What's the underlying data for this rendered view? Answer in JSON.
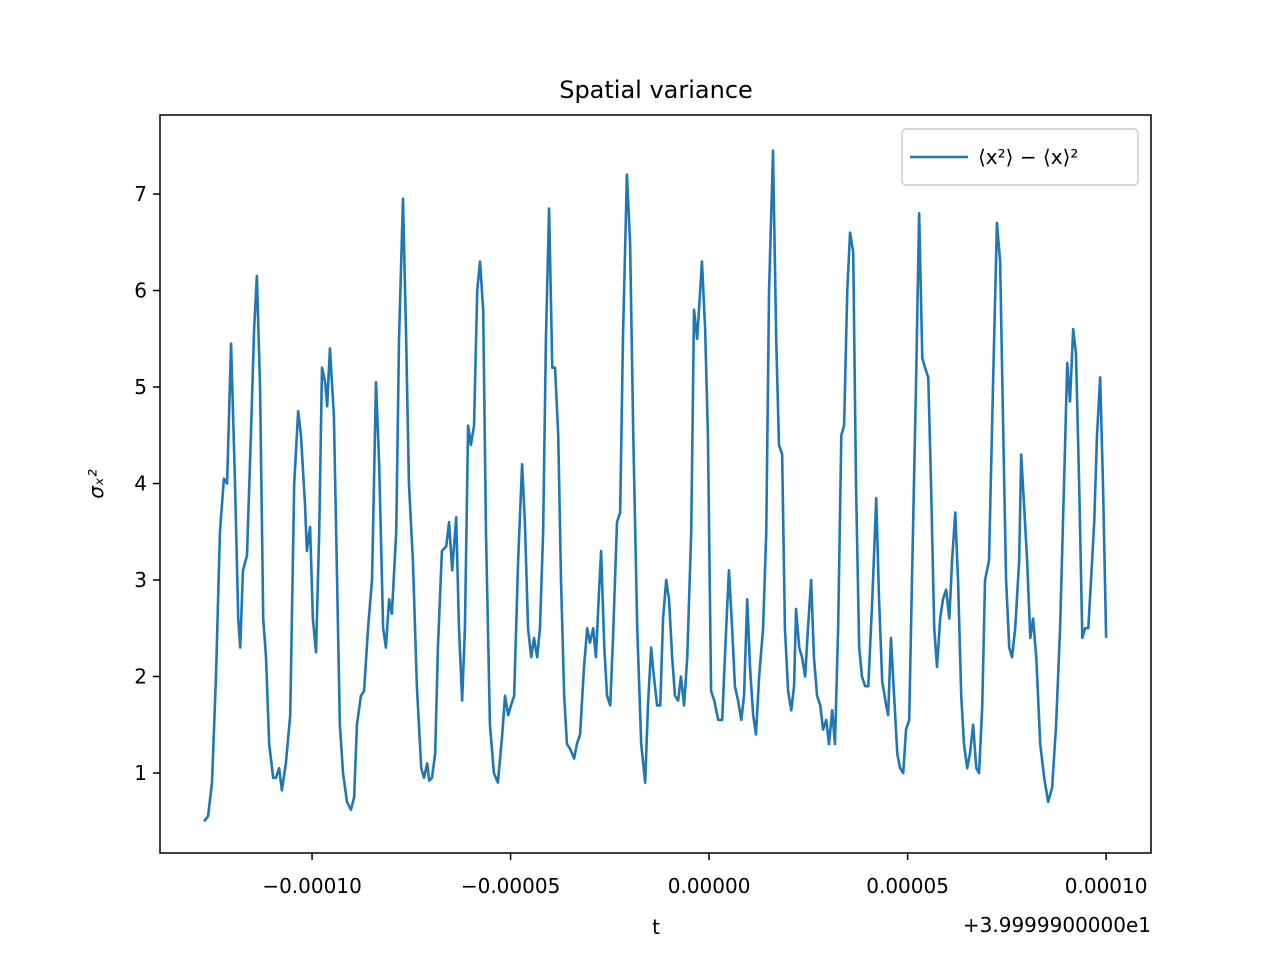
{
  "chart_data": {
    "type": "line",
    "title": "Spatial variance",
    "x_label": "t",
    "y_label": "σₓ²",
    "x_offset_text": "+3.9999900000e1",
    "x": [
      -0.0001272,
      -0.0001262,
      -0.0001252,
      -0.0001242,
      -0.0001232,
      -0.0001222,
      -0.0001214,
      -0.0001204,
      -0.0001194,
      -0.0001186,
      -0.0001181,
      -0.0001174,
      -0.0001164,
      -0.0001154,
      -0.0001146,
      -0.0001139,
      -0.0001131,
      -0.0001123,
      -0.0001116,
      -0.0001108,
      -0.0001098,
      -0.0001091,
      -0.0001083,
      -0.0001076,
      -0.0001066,
      -0.0001055,
      -0.0001045,
      -0.0001035,
      -0.0001028,
      -0.0001018,
      -0.0001013,
      -0.0001005,
      -9.98e-05,
      -9.9e-05,
      -9.82e-05,
      -9.75e-05,
      -9.67e-05,
      -9.62e-05,
      -9.55e-05,
      -9.45e-05,
      -9.37e-05,
      -9.3e-05,
      -9.22e-05,
      -9.12e-05,
      -9.02e-05,
      -8.94e-05,
      -8.87e-05,
      -8.77e-05,
      -8.69e-05,
      -8.59e-05,
      -8.49e-05,
      -8.39e-05,
      -8.31e-05,
      -8.21e-05,
      -8.14e-05,
      -8.06e-05,
      -7.99e-05,
      -7.88e-05,
      -7.81e-05,
      -7.71e-05,
      -7.63e-05,
      -7.56e-05,
      -7.46e-05,
      -7.36e-05,
      -7.25e-05,
      -7.18e-05,
      -7.1e-05,
      -7.05e-05,
      -6.98e-05,
      -6.9e-05,
      -6.83e-05,
      -6.73e-05,
      -6.62e-05,
      -6.55e-05,
      -6.47e-05,
      -6.37e-05,
      -6.3e-05,
      -6.22e-05,
      -6.15e-05,
      -6.07e-05,
      -6e-05,
      -5.92e-05,
      -5.84e-05,
      -5.77e-05,
      -5.69e-05,
      -5.62e-05,
      -5.52e-05,
      -5.42e-05,
      -5.32e-05,
      -5.21e-05,
      -5.14e-05,
      -5.06e-05,
      -4.99e-05,
      -4.91e-05,
      -4.81e-05,
      -4.71e-05,
      -4.64e-05,
      -4.56e-05,
      -4.48e-05,
      -4.41e-05,
      -4.33e-05,
      -4.26e-05,
      -4.18e-05,
      -4.11e-05,
      -4.03e-05,
      -3.95e-05,
      -3.88e-05,
      -3.8e-05,
      -3.73e-05,
      -3.65e-05,
      -3.58e-05,
      -3.5e-05,
      -3.4e-05,
      -3.33e-05,
      -3.25e-05,
      -3.15e-05,
      -3.07e-05,
      -3e-05,
      -2.92e-05,
      -2.85e-05,
      -2.77e-05,
      -2.72e-05,
      -2.64e-05,
      -2.57e-05,
      -2.49e-05,
      -2.42e-05,
      -2.32e-05,
      -2.24e-05,
      -2.17e-05,
      -2.07e-05,
      -1.99e-05,
      -1.91e-05,
      -1.81e-05,
      -1.71e-05,
      -1.61e-05,
      -1.54e-05,
      -1.46e-05,
      -1.39e-05,
      -1.31e-05,
      -1.23e-05,
      -1.16e-05,
      -1.08e-05,
      -1.01e-05,
      -9.3e-06,
      -8.6e-06,
      -7.8e-06,
      -7.1e-06,
      -6.3e-06,
      -5.5e-06,
      -4.5e-06,
      -3.8e-06,
      -3e-06,
      -1.8e-06,
      -1e-06,
      -3e-07,
      5e-07,
      1.3e-06,
      2.3e-06,
      3.3e-06,
      4.3e-06,
      5e-06,
      5.8e-06,
      6.5e-06,
      7.3e-06,
      8.1e-06,
      8.8e-06,
      9.6e-06,
      1.03e-05,
      1.11e-05,
      1.18e-05,
      1.26e-05,
      1.36e-05,
      1.44e-05,
      1.51e-05,
      1.61e-05,
      1.69e-05,
      1.76e-05,
      1.84e-05,
      1.91e-05,
      1.99e-05,
      2.07e-05,
      2.14e-05,
      2.19e-05,
      2.27e-05,
      2.34e-05,
      2.42e-05,
      2.49e-05,
      2.57e-05,
      2.64e-05,
      2.72e-05,
      2.8e-05,
      2.87e-05,
      2.95e-05,
      3.02e-05,
      3.1e-05,
      3.17e-05,
      3.25e-05,
      3.33e-05,
      3.4e-05,
      3.48e-05,
      3.55e-05,
      3.63e-05,
      3.7e-05,
      3.78e-05,
      3.85e-05,
      3.93e-05,
      4.01e-05,
      4.11e-05,
      4.21e-05,
      4.28e-05,
      4.36e-05,
      4.46e-05,
      4.51e-05,
      4.58e-05,
      4.66e-05,
      4.74e-05,
      4.81e-05,
      4.89e-05,
      4.96e-05,
      5.04e-05,
      5.11e-05,
      5.21e-05,
      5.29e-05,
      5.37e-05,
      5.44e-05,
      5.52e-05,
      5.59e-05,
      5.67e-05,
      5.74e-05,
      5.82e-05,
      5.89e-05,
      5.97e-05,
      6.05e-05,
      6.12e-05,
      6.2e-05,
      6.27e-05,
      6.35e-05,
      6.42e-05,
      6.5e-05,
      6.57e-05,
      6.65e-05,
      6.73e-05,
      6.8e-05,
      6.88e-05,
      6.95e-05,
      7.05e-05,
      7.15e-05,
      7.25e-05,
      7.33e-05,
      7.41e-05,
      7.48e-05,
      7.56e-05,
      7.63e-05,
      7.71e-05,
      7.81e-05,
      7.86e-05,
      7.93e-05,
      8.01e-05,
      8.09e-05,
      8.16e-05,
      8.24e-05,
      8.34e-05,
      8.44e-05,
      8.54e-05,
      8.64e-05,
      8.74e-05,
      8.84e-05,
      8.94e-05,
      9.02e-05,
      9.09e-05,
      9.17e-05,
      9.24e-05,
      9.32e-05,
      9.4e-05,
      9.47e-05,
      9.55e-05,
      9.62e-05,
      9.7e-05,
      9.77e-05,
      9.85e-05,
      9.92e-05,
      0.0001
    ],
    "series": [
      {
        "name": "⟨x²⟩ − ⟨x⟩²",
        "color": "#1f77b4",
        "values": [
          0.5,
          0.55,
          0.9,
          2.0,
          3.5,
          4.05,
          4.0,
          5.45,
          4.0,
          2.6,
          2.3,
          3.1,
          3.25,
          4.5,
          5.6,
          6.15,
          5.0,
          2.6,
          2.2,
          1.3,
          0.95,
          0.95,
          1.05,
          0.82,
          1.1,
          1.6,
          4.0,
          4.75,
          4.5,
          3.8,
          3.3,
          3.55,
          2.6,
          2.25,
          3.5,
          5.2,
          5.05,
          4.8,
          5.4,
          4.7,
          3.0,
          1.5,
          1.0,
          0.7,
          0.62,
          0.75,
          1.5,
          1.8,
          1.85,
          2.5,
          3.0,
          5.05,
          4.2,
          2.5,
          2.3,
          2.8,
          2.65,
          3.5,
          5.5,
          6.95,
          5.5,
          4.0,
          3.2,
          1.9,
          1.05,
          0.95,
          1.1,
          0.92,
          0.95,
          1.2,
          2.3,
          3.3,
          3.35,
          3.6,
          3.1,
          3.65,
          2.5,
          1.75,
          2.5,
          4.6,
          4.4,
          4.6,
          6.0,
          6.3,
          5.8,
          3.5,
          1.5,
          1.0,
          0.9,
          1.4,
          1.8,
          1.6,
          1.7,
          1.8,
          3.2,
          4.2,
          3.6,
          2.5,
          2.2,
          2.4,
          2.2,
          2.5,
          3.5,
          5.5,
          6.85,
          5.2,
          5.2,
          4.5,
          3.0,
          1.8,
          1.3,
          1.25,
          1.15,
          1.3,
          1.4,
          2.1,
          2.5,
          2.35,
          2.5,
          2.2,
          2.9,
          3.3,
          2.3,
          1.8,
          1.7,
          2.4,
          3.6,
          3.7,
          5.5,
          7.2,
          6.5,
          4.5,
          2.5,
          1.3,
          0.9,
          1.7,
          2.3,
          2.0,
          1.7,
          1.7,
          2.6,
          3.0,
          2.8,
          2.2,
          1.8,
          1.75,
          2.0,
          1.7,
          2.2,
          3.5,
          5.8,
          5.5,
          6.3,
          5.6,
          4.5,
          1.85,
          1.75,
          1.55,
          1.55,
          2.5,
          3.1,
          2.5,
          1.9,
          1.75,
          1.55,
          1.8,
          2.8,
          2.1,
          1.6,
          1.4,
          2.0,
          2.5,
          3.5,
          6.0,
          7.45,
          5.5,
          4.4,
          4.3,
          2.5,
          1.85,
          1.65,
          1.9,
          2.7,
          2.3,
          2.2,
          2.0,
          2.5,
          3.0,
          2.2,
          1.8,
          1.7,
          1.45,
          1.55,
          1.3,
          1.65,
          1.3,
          2.5,
          4.5,
          4.6,
          6.0,
          6.6,
          6.4,
          4.0,
          2.3,
          2.0,
          1.9,
          1.9,
          2.8,
          3.85,
          2.8,
          1.95,
          1.7,
          1.6,
          2.4,
          1.8,
          1.2,
          1.05,
          1.0,
          1.45,
          1.55,
          3.0,
          5.0,
          6.8,
          5.3,
          5.2,
          5.1,
          4.0,
          2.5,
          2.1,
          2.6,
          2.8,
          2.9,
          2.6,
          3.2,
          3.7,
          3.0,
          1.8,
          1.3,
          1.05,
          1.2,
          1.5,
          1.05,
          1.0,
          1.7,
          3.0,
          3.2,
          5.0,
          6.7,
          6.3,
          4.5,
          3.0,
          2.3,
          2.2,
          2.5,
          3.2,
          4.3,
          3.8,
          3.2,
          2.4,
          2.6,
          2.2,
          1.3,
          0.95,
          0.7,
          0.85,
          1.5,
          2.5,
          4.0,
          5.25,
          4.85,
          5.6,
          5.35,
          4.0,
          2.4,
          2.5,
          2.5,
          3.0,
          3.6,
          4.5,
          5.1,
          4.0,
          2.4
        ]
      }
    ],
    "xlim": [
      -0.0001383,
      0.0001113
    ],
    "xticks": [
      {
        "value": -0.0001,
        "label": "−0.00010"
      },
      {
        "value": -5e-05,
        "label": "−0.00005"
      },
      {
        "value": 0,
        "label": "0.00000"
      },
      {
        "value": 5e-05,
        "label": "0.00005"
      },
      {
        "value": 0.0001,
        "label": "0.00010"
      }
    ],
    "ylim": [
      0.171,
      7.819
    ],
    "yticks": [
      1,
      2,
      3,
      4,
      5,
      6,
      7
    ],
    "grid": false,
    "legend": "upper right"
  }
}
